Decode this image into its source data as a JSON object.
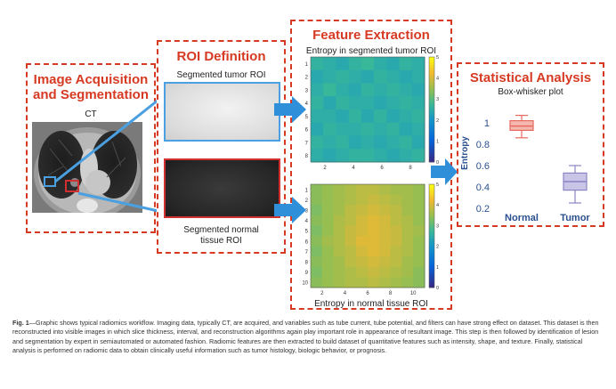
{
  "panels": {
    "acquisition": {
      "title": "Image Acquisition and Segmentation",
      "title_line1": "Image Acquisition",
      "title_line2": "and Segmentation",
      "image_label": "CT"
    },
    "roi": {
      "title": "ROI Definition",
      "tumor_label": "Segmented tumor ROI",
      "normal_label_line1": "Segmented normal",
      "normal_label_line2": "tissue ROI"
    },
    "features": {
      "title": "Feature Extraction",
      "top_label": "Entropy in segmented tumor ROI",
      "bottom_label": "Entropy in normal tissue ROI"
    },
    "stats": {
      "title": "Statistical Analysis",
      "subtitle": "Box-whisker plot"
    }
  },
  "caption": {
    "prefix": "Fig. 1",
    "text": "—Graphic shows typical radiomics workflow. Imaging data, typically CT, are acquired, and variables such as tube current, tube potential, and filters can have strong effect on dataset. This dataset is then reconstructed into visible images in which slice thickness, interval, and reconstruction algorithms again play important role in appearance of resultant image. This step is then followed by identification of lesion and segmentation by expert in semiautomated or automated fashion. Radiomic features are then extracted to build dataset of quantitative features such as intensity, shape, and texture. Finally, statistical analysis is performed on radiomic data to obtain clinically useful information such as tumor histology, biologic behavior, or prognosis."
  },
  "colors": {
    "accent": "#d63a22",
    "arrow": "#2f8fd8",
    "tumor_roi": "#4aa0e0",
    "normal_roi": "#d03030",
    "normal_box": "#e86a5e",
    "tumor_box": "#8a84c4"
  },
  "chart_data": [
    {
      "type": "heatmap",
      "title": "Entropy in segmented tumor ROI",
      "x_ticks": [
        "2",
        "4",
        "6",
        "8"
      ],
      "y_ticks": [
        "1",
        "2",
        "3",
        "4",
        "5",
        "6",
        "7",
        "8"
      ],
      "colorbar_ticks": [
        "5",
        "4",
        "3",
        "2",
        "1",
        "0"
      ],
      "clim": [
        0,
        5
      ],
      "values": [
        [
          2.6,
          2.5,
          2.4,
          2.6,
          2.7,
          2.5,
          2.4,
          2.6,
          2.5
        ],
        [
          2.4,
          2.5,
          2.6,
          2.5,
          2.4,
          2.6,
          2.5,
          2.4,
          2.5
        ],
        [
          2.5,
          2.7,
          2.5,
          2.4,
          2.6,
          2.5,
          2.6,
          2.5,
          2.4
        ],
        [
          2.6,
          2.4,
          2.6,
          2.5,
          2.5,
          2.4,
          2.5,
          2.6,
          2.5
        ],
        [
          2.5,
          2.5,
          2.4,
          2.6,
          2.4,
          2.6,
          2.4,
          2.5,
          2.6
        ],
        [
          2.4,
          2.6,
          2.5,
          2.5,
          2.6,
          2.5,
          2.6,
          2.4,
          2.5
        ],
        [
          2.6,
          2.5,
          2.6,
          2.4,
          2.5,
          2.4,
          2.5,
          2.6,
          2.4
        ],
        [
          2.5,
          2.4,
          2.5,
          2.6,
          2.6,
          2.5,
          2.4,
          2.5,
          2.6
        ]
      ]
    },
    {
      "type": "heatmap",
      "title": "Entropy in normal tissue ROI",
      "x_ticks": [
        "2",
        "4",
        "6",
        "8",
        "10"
      ],
      "y_ticks": [
        "1",
        "2",
        "3",
        "4",
        "5",
        "6",
        "7",
        "8",
        "9",
        "10"
      ],
      "colorbar_ticks": [
        "5",
        "4",
        "3",
        "2",
        "1",
        "0"
      ],
      "clim": [
        0,
        5
      ],
      "values": [
        [
          3.4,
          3.5,
          3.6,
          3.7,
          3.8,
          3.8,
          3.7,
          3.6,
          3.6,
          3.5
        ],
        [
          3.4,
          3.5,
          3.6,
          3.7,
          3.8,
          3.9,
          3.8,
          3.7,
          3.6,
          3.5
        ],
        [
          3.3,
          3.5,
          3.6,
          3.8,
          3.9,
          4.0,
          3.9,
          3.8,
          3.6,
          3.5
        ],
        [
          3.4,
          3.5,
          3.7,
          3.8,
          4.0,
          4.1,
          4.0,
          3.8,
          3.7,
          3.5
        ],
        [
          3.3,
          3.5,
          3.7,
          3.9,
          4.0,
          4.1,
          4.0,
          3.9,
          3.7,
          3.6
        ],
        [
          3.4,
          3.6,
          3.7,
          3.9,
          4.1,
          4.1,
          4.0,
          3.9,
          3.7,
          3.5
        ],
        [
          3.3,
          3.5,
          3.7,
          3.8,
          4.0,
          4.1,
          4.0,
          3.8,
          3.7,
          3.5
        ],
        [
          3.4,
          3.5,
          3.6,
          3.8,
          3.9,
          4.0,
          3.9,
          3.8,
          3.6,
          3.5
        ],
        [
          3.3,
          3.5,
          3.6,
          3.7,
          3.8,
          3.9,
          3.8,
          3.7,
          3.6,
          3.4
        ],
        [
          3.4,
          3.5,
          3.6,
          3.7,
          3.7,
          3.8,
          3.7,
          3.6,
          3.5,
          3.4
        ]
      ]
    },
    {
      "type": "box",
      "title": "Box-whisker plot",
      "ylabel": "Entropy",
      "y_ticks": [
        "1",
        "0.8",
        "0.6",
        "0.4",
        "0.2"
      ],
      "ylim": [
        0.15,
        1.1
      ],
      "categories": [
        "Normal",
        "Tumor"
      ],
      "boxes": [
        {
          "name": "Normal",
          "min": 0.86,
          "q1": 0.93,
          "median": 0.97,
          "q3": 1.02,
          "max": 1.07
        },
        {
          "name": "Tumor",
          "min": 0.25,
          "q1": 0.37,
          "median": 0.45,
          "q3": 0.53,
          "max": 0.6
        }
      ]
    }
  ]
}
